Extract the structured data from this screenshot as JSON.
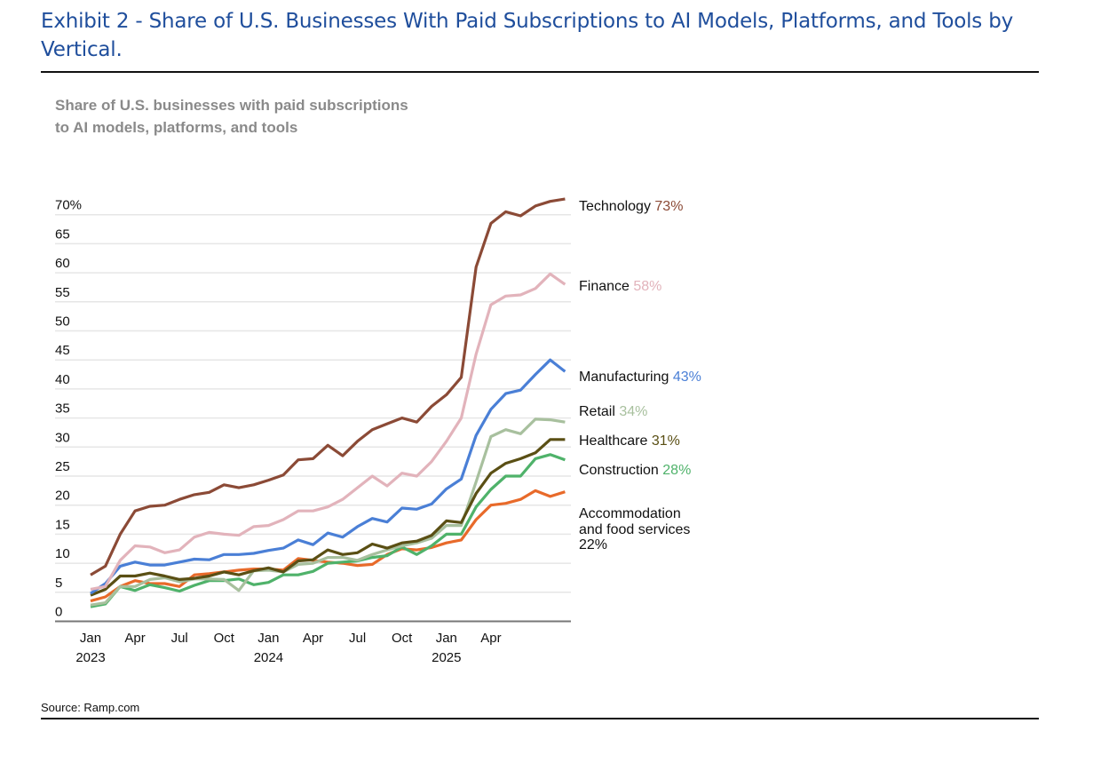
{
  "header": {
    "title": "Exhibit 2 - Share of U.S. Businesses With Paid Subscriptions to AI Models, Platforms, and Tools by Vertical.",
    "source": "Source: Ramp.com"
  },
  "chart_data": {
    "type": "line",
    "title": "Share of U.S. businesses with paid subscriptions to AI models, platforms, and tools",
    "subtitle_lines": [
      "Share of U.S. businesses with paid subscriptions",
      "to AI models, platforms, and tools"
    ],
    "xlabel": "",
    "ylabel": "",
    "ylim": [
      0,
      70
    ],
    "yticks": [
      0,
      5,
      10,
      15,
      20,
      25,
      30,
      35,
      40,
      45,
      50,
      55,
      60,
      65,
      70
    ],
    "ytick_labels": [
      "0",
      "5",
      "10",
      "15",
      "20",
      "25",
      "30",
      "35",
      "40",
      "45",
      "50",
      "55",
      "60",
      "65",
      "70%"
    ],
    "grid": true,
    "x_start": "2023-01",
    "x_months": 33,
    "xticks": [
      {
        "index": 0,
        "label": "Jan",
        "year": "2023"
      },
      {
        "index": 3,
        "label": "Apr",
        "year": ""
      },
      {
        "index": 6,
        "label": "Jul",
        "year": ""
      },
      {
        "index": 9,
        "label": "Oct",
        "year": ""
      },
      {
        "index": 12,
        "label": "Jan",
        "year": "2024"
      },
      {
        "index": 15,
        "label": "Apr",
        "year": ""
      },
      {
        "index": 18,
        "label": "Jul",
        "year": ""
      },
      {
        "index": 21,
        "label": "Oct",
        "year": ""
      },
      {
        "index": 24,
        "label": "Jan",
        "year": "2025"
      },
      {
        "index": 27,
        "label": "Apr",
        "year": ""
      }
    ],
    "legend_placement": "right (direct labels)",
    "series": [
      {
        "name": "Technology",
        "end_label": "73%",
        "color": "#8b4a36",
        "values": [
          8,
          9.5,
          15,
          19,
          19.8,
          20,
          21,
          21.8,
          22.2,
          23.5,
          23,
          23.5,
          24.3,
          25.2,
          27.8,
          28,
          30.3,
          28.5,
          31,
          33,
          34,
          35,
          34.3,
          37,
          39,
          42,
          61,
          68.5,
          70.5,
          69.8,
          71.5,
          72.3,
          72.7
        ]
      },
      {
        "name": "Finance",
        "end_label": "58%",
        "color": "#e2b3bb",
        "values": [
          5.5,
          6,
          10.5,
          13,
          12.8,
          11.8,
          12.3,
          14.5,
          15.3,
          15,
          14.8,
          16.3,
          16.5,
          17.5,
          19,
          19,
          19.7,
          21,
          23,
          25,
          23.3,
          25.5,
          25,
          27.5,
          31,
          35,
          46,
          54.5,
          56,
          56.2,
          57.3,
          59.8,
          58
        ]
      },
      {
        "name": "Manufacturing",
        "end_label": "43%",
        "color": "#4a7fd6",
        "values": [
          4.8,
          6.5,
          9.5,
          10.2,
          9.7,
          9.7,
          10.2,
          10.7,
          10.6,
          11.5,
          11.5,
          11.7,
          12.2,
          12.6,
          14,
          13.2,
          15.2,
          14.5,
          16.3,
          17.7,
          17.1,
          19.5,
          19.3,
          20.2,
          22.8,
          24.5,
          32,
          36.5,
          39.2,
          39.8,
          42.5,
          45,
          43
        ]
      },
      {
        "name": "Retail",
        "end_label": "34%",
        "color": "#a8c09e",
        "values": [
          2.8,
          3.2,
          6,
          6,
          7.2,
          7.5,
          6.8,
          7.3,
          7.3,
          7.2,
          5.3,
          8.7,
          8.8,
          8.5,
          9.8,
          10,
          11,
          11,
          10.5,
          11.5,
          12.3,
          13,
          13.5,
          14.3,
          16.5,
          16.5,
          24,
          31.8,
          33,
          32.3,
          34.8,
          34.7,
          34.3
        ]
      },
      {
        "name": "Healthcare",
        "end_label": "31%",
        "color": "#5a4f14",
        "values": [
          4.5,
          5.5,
          7.8,
          7.8,
          8.3,
          7.8,
          7.2,
          7.4,
          7.8,
          8.5,
          8,
          8.7,
          9.2,
          8.5,
          10.4,
          10.6,
          12.3,
          11.5,
          11.8,
          13.3,
          12.6,
          13.5,
          13.8,
          14.8,
          17.3,
          17,
          22,
          25.5,
          27.2,
          28,
          29,
          31.3,
          31.3
        ]
      },
      {
        "name": "Construction",
        "end_label": "28%",
        "color": "#4fb26a",
        "values": [
          2.5,
          3,
          6,
          5.3,
          6.3,
          5.8,
          5.2,
          6.2,
          7,
          7,
          7.3,
          6.3,
          6.7,
          8,
          8,
          8.6,
          10,
          10.2,
          10.4,
          11,
          11.3,
          12.8,
          11.5,
          13,
          15,
          15,
          19.7,
          22.7,
          25,
          25,
          28,
          28.7,
          27.8
        ]
      },
      {
        "name": "Accommodation and food services",
        "name_lines": [
          "Accommodation",
          "and food services"
        ],
        "end_label": "22%",
        "color": "#e86a2a",
        "values": [
          3.5,
          4.2,
          6,
          7,
          6.5,
          6.5,
          6,
          8,
          8.2,
          8.5,
          8.8,
          9,
          9,
          8.8,
          10.8,
          10.5,
          10.2,
          10,
          9.6,
          9.8,
          11.5,
          12.5,
          12.3,
          12.7,
          13.5,
          14,
          17.5,
          20,
          20.3,
          21,
          22.5,
          21.5,
          22.3
        ]
      }
    ]
  }
}
